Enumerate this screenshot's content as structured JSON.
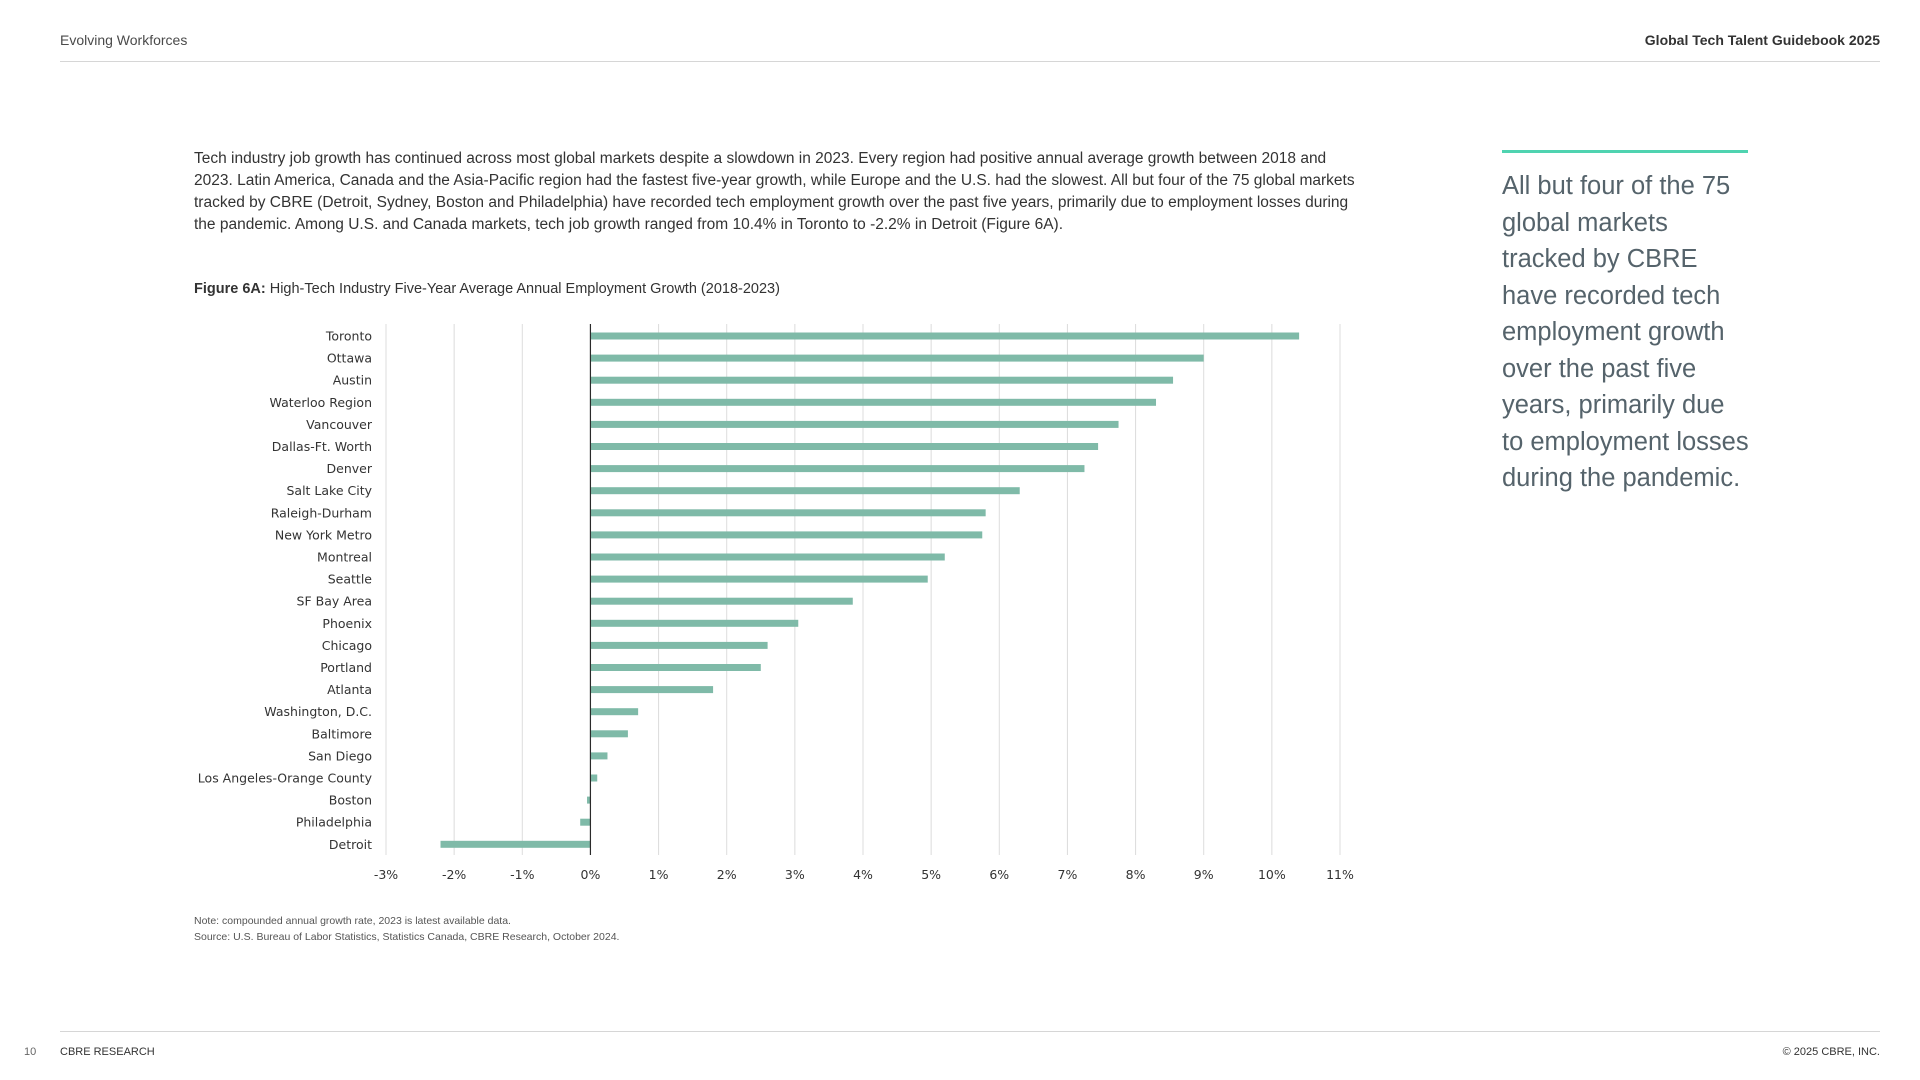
{
  "header": {
    "section": "Evolving Workforces",
    "publication": "Global Tech Talent Guidebook 2025"
  },
  "intro_text": "Tech industry job growth has continued across most global markets despite a slowdown in 2023. Every region had positive annual average growth between 2018 and 2023. Latin America, Canada and the Asia-Pacific region had the fastest five-year growth, while Europe and the U.S. had the slowest. All but four of the 75 global markets tracked by CBRE (Detroit, Sydney, Boston and Philadelphia) have recorded tech employment growth over the past five years, primarily due to employment losses during the pandemic. Among U.S. and Canada markets, tech job growth ranged from 10.4% in Toronto to -2.2% in Detroit (Figure 6A).",
  "figure": {
    "label": "Figure 6A:",
    "title": "High-Tech Industry Five-Year Average Annual Employment Growth (2018-2023)"
  },
  "chart_data": {
    "type": "bar",
    "orientation": "horizontal",
    "categories": [
      "Toronto",
      "Ottawa",
      "Austin",
      "Waterloo Region",
      "Vancouver",
      "Dallas-Ft. Worth",
      "Denver",
      "Salt Lake City",
      "Raleigh-Durham",
      "New York Metro",
      "Montreal",
      "Seattle",
      "SF Bay Area",
      "Phoenix",
      "Chicago",
      "Portland",
      "Atlanta",
      "Washington, D.C.",
      "Baltimore",
      "San Diego",
      "Los Angeles-Orange County",
      "Boston",
      "Philadelphia",
      "Detroit"
    ],
    "values": [
      10.4,
      9.0,
      8.55,
      8.3,
      7.75,
      7.45,
      7.25,
      6.3,
      5.8,
      5.75,
      5.2,
      4.95,
      3.85,
      3.05,
      2.6,
      2.5,
      1.8,
      0.7,
      0.55,
      0.25,
      0.1,
      -0.05,
      -0.15,
      -2.2
    ],
    "xlim": [
      -3,
      11
    ],
    "ticks": [
      "-3%",
      "-2%",
      "-1%",
      "0%",
      "1%",
      "2%",
      "3%",
      "4%",
      "5%",
      "6%",
      "7%",
      "8%",
      "9%",
      "10%",
      "11%"
    ],
    "grid": true,
    "legend": "none",
    "bar_color": "#7fbaa8"
  },
  "notes": {
    "note": "Note: compounded annual growth rate, 2023 is latest available data.",
    "source": "Source: U.S. Bureau of Labor Statistics, Statistics Canada, CBRE Research, October 2024."
  },
  "pull_quote": "All but four of the 75 global markets tracked by CBRE have recorded tech employment growth over the past five years, primarily due to employment losses during the pandemic.",
  "accent_color": "#4fd3b0",
  "footer": {
    "page_number": "10",
    "left": "CBRE RESEARCH",
    "right": "© 2025 CBRE, INC."
  }
}
